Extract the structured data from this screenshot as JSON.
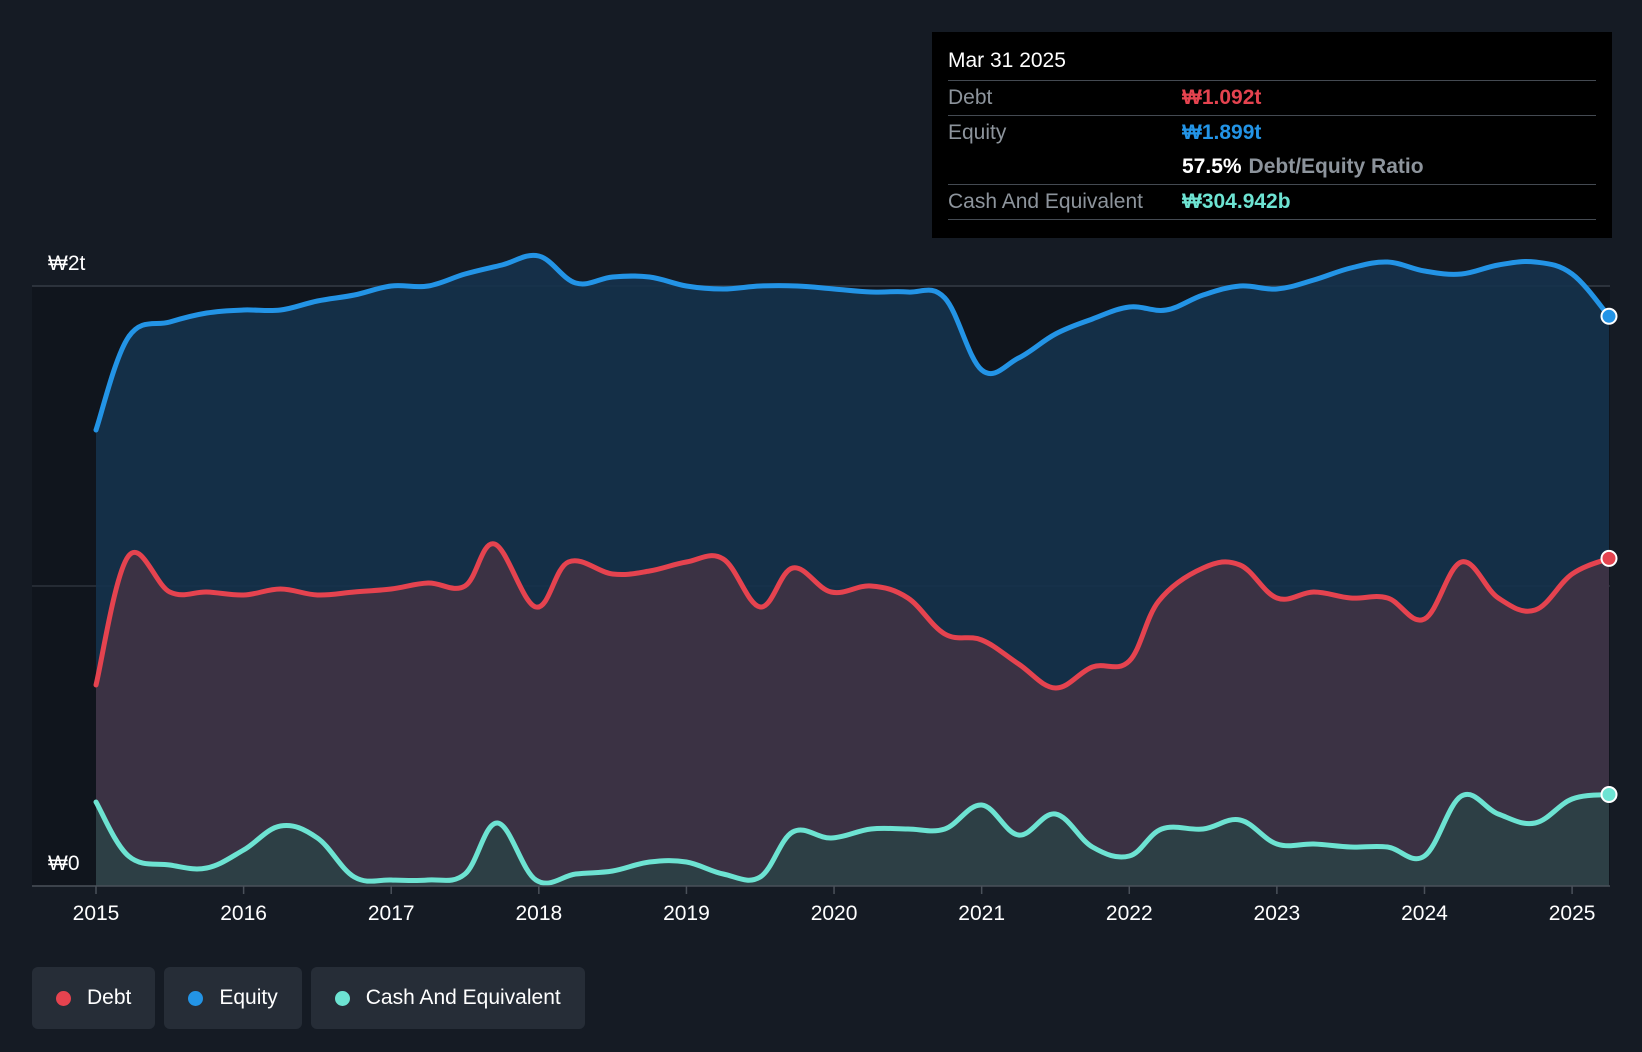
{
  "chart_data": {
    "type": "area",
    "title": "",
    "xlabel": "",
    "ylabel": "",
    "y_unit_labels": {
      "top": "₩2t",
      "bottom": "₩0"
    },
    "ylim": [
      0,
      2.2
    ],
    "xlim": [
      2015.0,
      2025.25
    ],
    "x_ticks": [
      "2015",
      "2016",
      "2017",
      "2018",
      "2019",
      "2020",
      "2021",
      "2022",
      "2023",
      "2024",
      "2025"
    ],
    "x_tick_values": [
      2015,
      2016,
      2017,
      2018,
      2019,
      2020,
      2021,
      2022,
      2023,
      2024,
      2025
    ],
    "grid_y": [
      1.0,
      2.0
    ],
    "series": [
      {
        "name": "Equity",
        "color": "#2394e6",
        "fill": "#15324d",
        "x": [
          2015.0,
          2015.22,
          2015.5,
          2015.75,
          2016.0,
          2016.25,
          2016.5,
          2016.75,
          2017.0,
          2017.25,
          2017.5,
          2017.75,
          2018.0,
          2018.25,
          2018.5,
          2018.75,
          2019.0,
          2019.25,
          2019.5,
          2019.75,
          2020.0,
          2020.25,
          2020.5,
          2020.75,
          2021.0,
          2021.25,
          2021.5,
          2021.75,
          2022.0,
          2022.25,
          2022.5,
          2022.75,
          2023.0,
          2023.25,
          2023.5,
          2023.75,
          2024.0,
          2024.25,
          2024.5,
          2024.75,
          2025.0,
          2025.25
        ],
        "values": [
          1.52,
          1.83,
          1.88,
          1.91,
          1.92,
          1.92,
          1.95,
          1.97,
          2.0,
          2.0,
          2.04,
          2.07,
          2.1,
          2.01,
          2.03,
          2.03,
          2.0,
          1.99,
          2.0,
          2.0,
          1.99,
          1.98,
          1.98,
          1.96,
          1.72,
          1.76,
          1.84,
          1.89,
          1.93,
          1.92,
          1.97,
          2.0,
          1.99,
          2.02,
          2.06,
          2.08,
          2.05,
          2.04,
          2.07,
          2.08,
          2.04,
          1.899
        ]
      },
      {
        "name": "Debt",
        "color": "#e5434f",
        "fill": "#3f3344",
        "x": [
          2015.0,
          2015.22,
          2015.5,
          2015.75,
          2016.0,
          2016.25,
          2016.5,
          2016.75,
          2017.0,
          2017.25,
          2017.5,
          2017.7,
          2017.98,
          2018.2,
          2018.5,
          2018.75,
          2019.0,
          2019.25,
          2019.5,
          2019.72,
          2019.98,
          2020.25,
          2020.5,
          2020.75,
          2021.0,
          2021.25,
          2021.5,
          2021.75,
          2022.0,
          2022.2,
          2022.5,
          2022.75,
          2023.0,
          2023.25,
          2023.5,
          2023.75,
          2024.0,
          2024.25,
          2024.5,
          2024.75,
          2025.0,
          2025.25
        ],
        "values": [
          0.67,
          1.1,
          0.98,
          0.98,
          0.97,
          0.99,
          0.97,
          0.98,
          0.99,
          1.01,
          1.0,
          1.14,
          0.93,
          1.08,
          1.04,
          1.05,
          1.08,
          1.09,
          0.93,
          1.06,
          0.98,
          1.0,
          0.96,
          0.84,
          0.82,
          0.74,
          0.66,
          0.73,
          0.75,
          0.95,
          1.06,
          1.07,
          0.96,
          0.98,
          0.96,
          0.96,
          0.89,
          1.08,
          0.96,
          0.92,
          1.04,
          1.092
        ]
      },
      {
        "name": "Cash And Equivalent",
        "color": "#6de3d2",
        "fill": "#2c4046",
        "x": [
          2015.0,
          2015.22,
          2015.5,
          2015.75,
          2016.0,
          2016.25,
          2016.5,
          2016.75,
          2017.0,
          2017.25,
          2017.5,
          2017.72,
          2017.98,
          2018.25,
          2018.5,
          2018.75,
          2019.0,
          2019.25,
          2019.5,
          2019.72,
          2019.98,
          2020.25,
          2020.5,
          2020.75,
          2021.0,
          2021.25,
          2021.5,
          2021.75,
          2022.0,
          2022.22,
          2022.5,
          2022.75,
          2023.0,
          2023.25,
          2023.5,
          2023.75,
          2024.0,
          2024.25,
          2024.5,
          2024.75,
          2025.0,
          2025.25
        ],
        "values": [
          0.28,
          0.1,
          0.07,
          0.06,
          0.12,
          0.2,
          0.16,
          0.03,
          0.02,
          0.02,
          0.04,
          0.21,
          0.02,
          0.04,
          0.05,
          0.08,
          0.08,
          0.04,
          0.03,
          0.18,
          0.16,
          0.19,
          0.19,
          0.19,
          0.27,
          0.17,
          0.24,
          0.13,
          0.1,
          0.19,
          0.19,
          0.22,
          0.14,
          0.14,
          0.13,
          0.13,
          0.1,
          0.3,
          0.24,
          0.21,
          0.29,
          0.305
        ]
      }
    ],
    "tooltip": {
      "date": "Mar 31 2025",
      "rows": [
        {
          "label": "Debt",
          "value": "₩1.092t"
        },
        {
          "label": "Equity",
          "value": "₩1.899t"
        },
        {
          "ratio": "57.5%",
          "ratio_label": "Debt/Equity Ratio"
        },
        {
          "label": "Cash And Equivalent",
          "value": "₩304.942b"
        }
      ]
    },
    "legend": [
      {
        "label": "Debt",
        "color": "#e5434f"
      },
      {
        "label": "Equity",
        "color": "#2394e6"
      },
      {
        "label": "Cash And Equivalent",
        "color": "#6de3d2"
      }
    ]
  }
}
